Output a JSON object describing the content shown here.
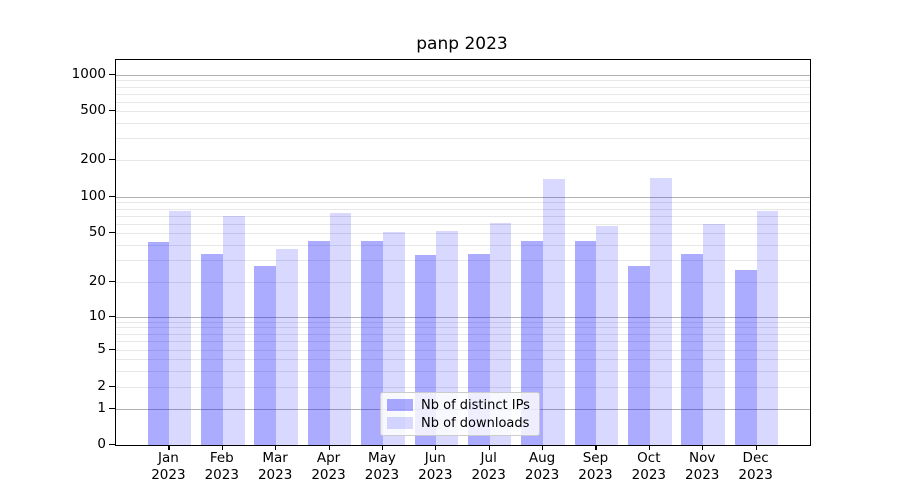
{
  "title": "panp 2023",
  "legend": {
    "items": [
      {
        "label": "Nb of distinct IPs",
        "color": "#aaaaff"
      },
      {
        "label": "Nb of downloads",
        "color": "#dcdcff"
      }
    ]
  },
  "chart_data": {
    "type": "bar",
    "title": "panp 2023",
    "categories": [
      "Jan 2023",
      "Feb 2023",
      "Mar 2023",
      "Apr 2023",
      "May 2023",
      "Jun 2023",
      "Jul 2023",
      "Aug 2023",
      "Sep 2023",
      "Oct 2023",
      "Nov 2023",
      "Dec 2023"
    ],
    "series": [
      {
        "name": "Nb of distinct IPs",
        "color": "rgba(0,0,255,0.33)",
        "values": [
          42,
          34,
          27,
          43,
          43,
          33,
          34,
          43,
          43,
          27,
          34,
          25
        ]
      },
      {
        "name": "Nb of downloads",
        "color": "rgba(0,0,255,0.15)",
        "values": [
          76,
          70,
          37,
          73,
          51,
          52,
          61,
          140,
          57,
          143,
          59,
          77
        ]
      }
    ],
    "xlabel": "",
    "ylabel": "",
    "yscale": "symlog",
    "yticks": [
      0,
      1,
      2,
      5,
      10,
      20,
      50,
      100,
      200,
      500,
      1000
    ],
    "ylim": [
      0,
      1300
    ],
    "grid": "both",
    "legend_position": "lower center"
  }
}
